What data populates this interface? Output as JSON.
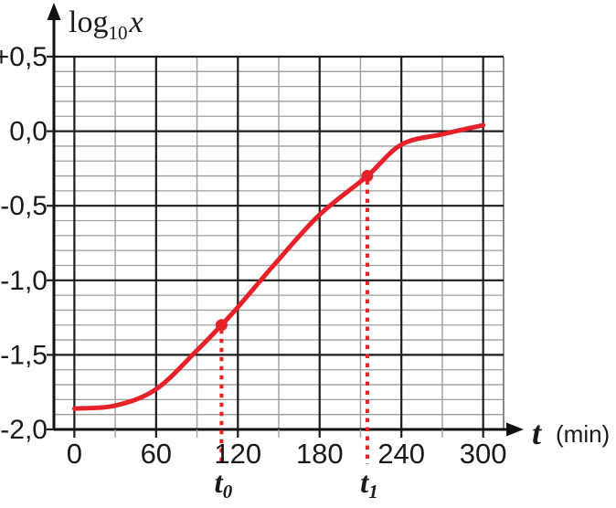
{
  "colors": {
    "curve_red": "#e62129",
    "grid_minor": "#9e9e9e",
    "grid_major": "#1c1c1c",
    "axis": "#111111",
    "text": "#1a1a1a",
    "background": "#ffffff"
  },
  "labels": {
    "y_axis_title_main": "log",
    "y_axis_title_sub": "10",
    "y_axis_title_var": "x",
    "x_axis_title_var": "t",
    "x_axis_title_unit": "(min)"
  },
  "chart_data": {
    "type": "line",
    "title": "",
    "xlabel": "t (min)",
    "ylabel": "log10(x)",
    "xlim": [
      -15,
      315
    ],
    "ylim": [
      -2.0,
      0.5
    ],
    "x_major_step": 60,
    "x_minor_step": 30,
    "y_major_step": 0.5,
    "y_minor_step": 0.1,
    "grid": "major+minor",
    "legend": "none",
    "x_ticks": [
      0,
      60,
      120,
      180,
      240,
      300
    ],
    "x_tick_labels": [
      "0",
      "60",
      "120",
      "180",
      "240",
      "300"
    ],
    "y_ticks": [
      0.5,
      0.0,
      -0.5,
      -1.0,
      -1.5,
      -2.0
    ],
    "y_tick_labels": [
      "+0,5",
      "0,0",
      "-0,5",
      "-1,0",
      "-1,5",
      "-2,0"
    ],
    "series": [
      {
        "name": "log10x_vs_t_sigmoid",
        "color": "#e62129",
        "points": [
          [
            0,
            -1.86
          ],
          [
            30,
            -1.84
          ],
          [
            60,
            -1.73
          ],
          [
            90,
            -1.47
          ],
          [
            108,
            -1.3
          ],
          [
            120,
            -1.18
          ],
          [
            150,
            -0.86
          ],
          [
            180,
            -0.56
          ],
          [
            215,
            -0.3
          ],
          [
            240,
            -0.09
          ],
          [
            270,
            -0.02
          ],
          [
            300,
            0.04
          ]
        ]
      }
    ],
    "marked_points": [
      {
        "name": "t0",
        "t": 108,
        "value": -1.3,
        "label_main": "t",
        "label_sub": "0"
      },
      {
        "name": "t1",
        "t": 215,
        "value": -0.3,
        "label_main": "t",
        "label_sub": "1"
      }
    ]
  }
}
